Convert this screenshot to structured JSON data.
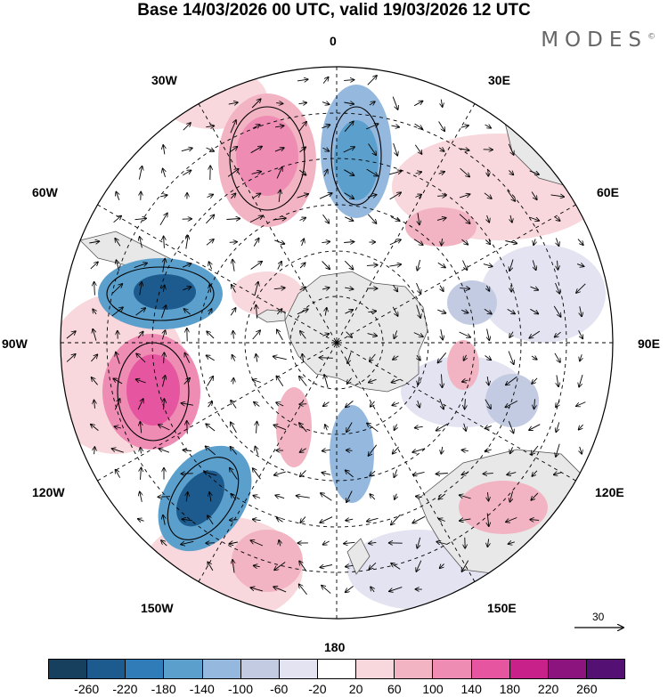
{
  "title": "Base 14/03/2026 00 UTC, valid 19/03/2026 12 UTC",
  "brand": "MODES",
  "brand_mark": "©",
  "longitude_labels": {
    "lon_0": "0",
    "lon_30e": "30E",
    "lon_60e": "60E",
    "lon_90e": "90E",
    "lon_120e": "120E",
    "lon_150e": "150E",
    "lon_180": "180",
    "lon_150w": "150W",
    "lon_120w": "120W",
    "lon_90w": "90W",
    "lon_60w": "60W",
    "lon_30w": "30W"
  },
  "reference_vector": "30",
  "colorbar": {
    "colors": [
      "#16405e",
      "#1d5b8e",
      "#2f7cb8",
      "#5b9fcc",
      "#95b9de",
      "#c3cbe3",
      "#e3e3f1",
      "#ffffff",
      "#f8d8dc",
      "#f2b4c3",
      "#ee8cb3",
      "#e6559f",
      "#c8218a",
      "#8b147f",
      "#551074"
    ],
    "ticks": [
      "-260",
      "-220",
      "-180",
      "-140",
      "-100",
      "-60",
      "-20",
      "20",
      "60",
      "100",
      "140",
      "180",
      "220",
      "260"
    ]
  },
  "anomaly_centers": [
    {
      "name": "positive-anomaly-30w",
      "value": 150
    },
    {
      "name": "negative-anomaly-20e",
      "value": -150
    },
    {
      "name": "negative-anomaly-75w",
      "value": -240
    },
    {
      "name": "positive-anomaly-105w",
      "value": 180
    },
    {
      "name": "negative-anomaly-140w",
      "value": -220
    },
    {
      "name": "negative-anomaly-165e",
      "value": -120
    },
    {
      "name": "positive-anomaly-45e",
      "value": 80
    },
    {
      "name": "positive-anomaly-120e",
      "value": 100
    }
  ]
}
